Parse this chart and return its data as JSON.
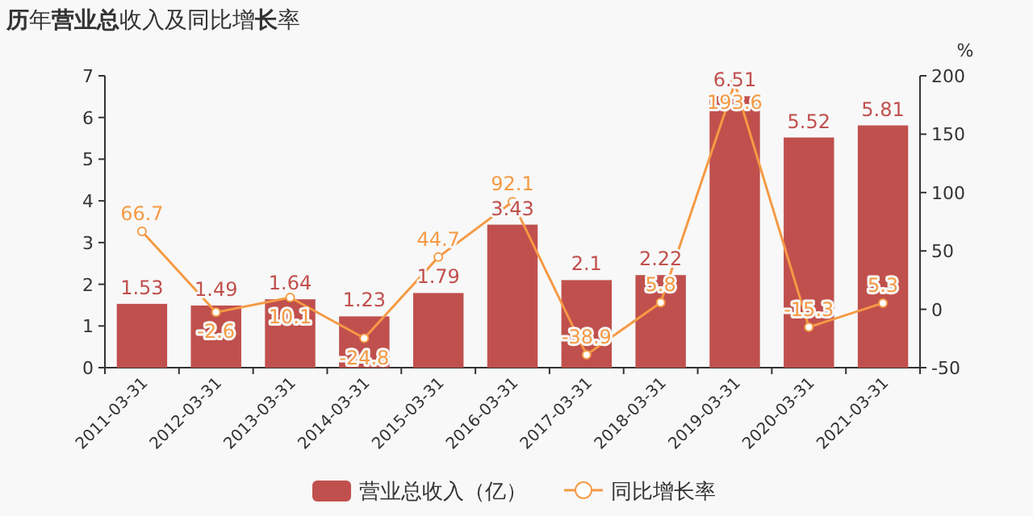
{
  "chart_data": {
    "type": "bar",
    "title": "**历**年**营业总**收入及同比增**长**率",
    "categories": [
      "2011-03-31",
      "2012-03-31",
      "2013-03-31",
      "2014-03-31",
      "2015-03-31",
      "2016-03-31",
      "2017-03-31",
      "2018-03-31",
      "2019-03-31",
      "2020-03-31",
      "2021-03-31"
    ],
    "ylim": [
      0,
      7
    ],
    "yticks": [
      0,
      1,
      2,
      3,
      4,
      5,
      6,
      7
    ],
    "y2lim": [
      -50,
      200
    ],
    "y2ticks": [
      -50,
      0,
      50,
      100,
      150,
      200
    ],
    "y2label": "%",
    "legend": "bottom",
    "data_labels": true,
    "marker": "circle",
    "grid": false,
    "series": [
      {
        "name": "营业总收入（亿）",
        "color": "#c0504d",
        "values": [
          1.53,
          1.49,
          1.64,
          1.23,
          1.79,
          3.43,
          2.1,
          2.22,
          6.51,
          5.52,
          5.81
        ]
      },
      {
        "name": "同比增长率",
        "type": "line",
        "axis": "y2",
        "color": "#f59a45",
        "values": [
          66.7,
          -2.6,
          10.1,
          -24.8,
          44.7,
          92.1,
          -38.9,
          5.8,
          193.6,
          -15.3,
          5.3
        ]
      }
    ]
  }
}
